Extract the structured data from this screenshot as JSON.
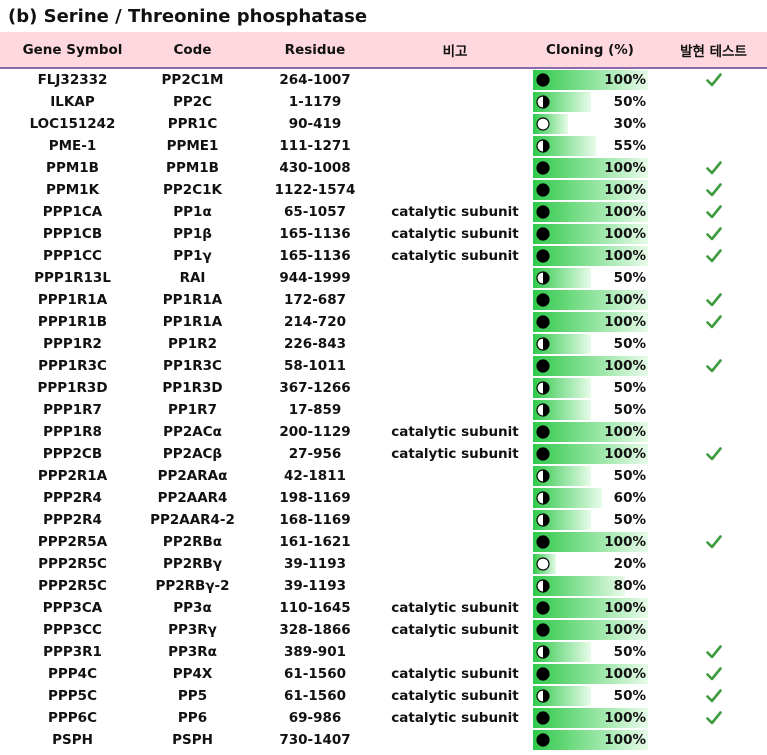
{
  "title": "(b) Serine / Threonine phosphatase",
  "table": {
    "headers": [
      "Gene Symbol",
      "Code",
      "Residue",
      "비고",
      "Cloning (%)",
      "발현 테스트"
    ],
    "rows": [
      {
        "gene": "FLJ32332",
        "code": "PP2C1M",
        "residue": "264-1007",
        "note": null,
        "cloning": {
          "value": 100,
          "label": "100%"
        },
        "test": true
      },
      {
        "gene": "ILKAP",
        "code": "PP2C",
        "residue": "1-1179",
        "note": null,
        "cloning": {
          "value": 50,
          "label": "50%"
        },
        "test": false
      },
      {
        "gene": "LOC151242",
        "code": "PPR1C",
        "residue": "90-419",
        "note": null,
        "cloning": {
          "value": 30,
          "label": "30%"
        },
        "test": false
      },
      {
        "gene": "PME-1",
        "code": "PPME1",
        "residue": "111-1271",
        "note": null,
        "cloning": {
          "value": 55,
          "label": "55%"
        },
        "test": false
      },
      {
        "gene": "PPM1B",
        "code": "PPM1B",
        "residue": "430-1008",
        "note": null,
        "cloning": {
          "value": 100,
          "label": "100%"
        },
        "test": true
      },
      {
        "gene": "PPM1K",
        "code": "PP2C1K",
        "residue": "1122-1574",
        "note": null,
        "cloning": {
          "value": 100,
          "label": "100%"
        },
        "test": true
      },
      {
        "gene": "PPP1CA",
        "code": "PP1α",
        "residue": "65-1057",
        "note": "catalytic subunit",
        "cloning": {
          "value": 100,
          "label": "100%"
        },
        "test": true
      },
      {
        "gene": "PPP1CB",
        "code": "PP1β",
        "residue": "165-1136",
        "note": "catalytic subunit",
        "cloning": {
          "value": 100,
          "label": "100%"
        },
        "test": true
      },
      {
        "gene": "PPP1CC",
        "code": "PP1γ",
        "residue": "165-1136",
        "note": "catalytic subunit",
        "cloning": {
          "value": 100,
          "label": "100%"
        },
        "test": true
      },
      {
        "gene": "PPP1R13L",
        "code": "RAI",
        "residue": "944-1999",
        "note": null,
        "cloning": {
          "value": 50,
          "label": "50%"
        },
        "test": false
      },
      {
        "gene": "PPP1R1A",
        "code": "PP1R1A",
        "residue": "172-687",
        "note": null,
        "cloning": {
          "value": 100,
          "label": "100%"
        },
        "test": true
      },
      {
        "gene": "PPP1R1B",
        "code": "PP1R1A",
        "residue": "214-720",
        "note": null,
        "cloning": {
          "value": 100,
          "label": "100%"
        },
        "test": true
      },
      {
        "gene": "PPP1R2",
        "code": "PP1R2",
        "residue": "226-843",
        "note": null,
        "cloning": {
          "value": 50,
          "label": "50%"
        },
        "test": false
      },
      {
        "gene": "PPP1R3C",
        "code": "PP1R3C",
        "residue": "58-1011",
        "note": null,
        "cloning": {
          "value": 100,
          "label": "100%"
        },
        "test": true
      },
      {
        "gene": "PPP1R3D",
        "code": "PP1R3D",
        "residue": "367-1266",
        "note": null,
        "cloning": {
          "value": 50,
          "label": "50%"
        },
        "test": false
      },
      {
        "gene": "PPP1R7",
        "code": "PP1R7",
        "residue": "17-859",
        "note": null,
        "cloning": {
          "value": 50,
          "label": "50%"
        },
        "test": false
      },
      {
        "gene": "PPP1R8",
        "code": "PP2ACα",
        "residue": "200-1129",
        "note": "catalytic subunit",
        "cloning": {
          "value": 100,
          "label": "100%"
        },
        "test": false
      },
      {
        "gene": "PPP2CB",
        "code": "PP2ACβ",
        "residue": "27-956",
        "note": "catalytic subunit",
        "cloning": {
          "value": 100,
          "label": "100%"
        },
        "test": true
      },
      {
        "gene": "PPP2R1A",
        "code": "PP2ARAα",
        "residue": "42-1811",
        "note": null,
        "cloning": {
          "value": 50,
          "label": "50%"
        },
        "test": false
      },
      {
        "gene": "PPP2R4",
        "code": "PP2AAR4",
        "residue": "198-1169",
        "note": null,
        "cloning": {
          "value": 60,
          "label": "60%"
        },
        "test": false
      },
      {
        "gene": "PPP2R4",
        "code": "PP2AAR4-2",
        "residue": "168-1169",
        "note": null,
        "cloning": {
          "value": 50,
          "label": "50%"
        },
        "test": false
      },
      {
        "gene": "PPP2R5A",
        "code": "PP2RBα",
        "residue": "161-1621",
        "note": null,
        "cloning": {
          "value": 100,
          "label": "100%"
        },
        "test": true
      },
      {
        "gene": "PPP2R5C",
        "code": "PP2RBγ",
        "residue": "39-1193",
        "note": null,
        "cloning": {
          "value": 20,
          "label": "20%"
        },
        "test": false
      },
      {
        "gene": "PPP2R5C",
        "code": "PP2RBγ-2",
        "residue": "39-1193",
        "note": null,
        "cloning": {
          "value": 80,
          "label": "80%"
        },
        "test": false
      },
      {
        "gene": "PPP3CA",
        "code": "PP3α",
        "residue": "110-1645",
        "note": "catalytic subunit",
        "cloning": {
          "value": 100,
          "label": "100%"
        },
        "test": false
      },
      {
        "gene": "PPP3CC",
        "code": "PP3Rγ",
        "residue": "328-1866",
        "note": "catalytic subunit",
        "cloning": {
          "value": 100,
          "label": "100%"
        },
        "test": false
      },
      {
        "gene": "PPP3R1",
        "code": "PP3Rα",
        "residue": "389-901",
        "note": null,
        "cloning": {
          "value": 50,
          "label": "50%"
        },
        "test": true
      },
      {
        "gene": "PPP4C",
        "code": "PP4X",
        "residue": "61-1560",
        "note": "catalytic subunit",
        "cloning": {
          "value": 100,
          "label": "100%"
        },
        "test": true
      },
      {
        "gene": "PPP5C",
        "code": "PP5",
        "residue": "61-1560",
        "note": "catalytic subunit",
        "cloning": {
          "value": 50,
          "label": "50%"
        },
        "test": true
      },
      {
        "gene": "PPP6C",
        "code": "PP6",
        "residue": "69-986",
        "note": "catalytic subunit",
        "cloning": {
          "value": 100,
          "label": "100%"
        },
        "test": true
      },
      {
        "gene": "PSPH",
        "code": "PSPH",
        "residue": "730-1407",
        "note": null,
        "cloning": {
          "value": 100,
          "label": "100%"
        },
        "test": false
      }
    ]
  }
}
